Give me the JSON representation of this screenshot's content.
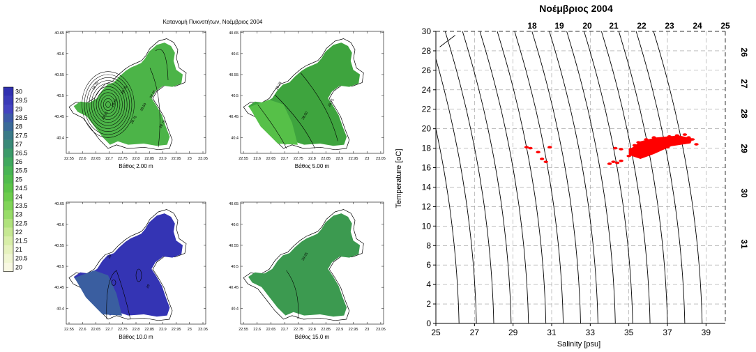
{
  "chart_data": [
    {
      "type": "heatmap",
      "title": "Κατανομή Πυκνοτήτων, Νοέμβριος 2004",
      "colorbar": {
        "ticks": [
          "30",
          "29.5",
          "29",
          "28.5",
          "28",
          "27.5",
          "27",
          "26.5",
          "26",
          "25.5",
          "25",
          "24.5",
          "24",
          "23.5",
          "23",
          "22.5",
          "22",
          "21.5",
          "21",
          "20.5",
          "20"
        ],
        "colors": [
          "#3030b0",
          "#3a3ab8",
          "#4444c0",
          "#3d5aa8",
          "#3a6a98",
          "#3a7a88",
          "#3a8a78",
          "#3c9a6a",
          "#40a85e",
          "#48b454",
          "#50bc4c",
          "#5cc448",
          "#6ccc4c",
          "#80d458",
          "#98dc68",
          "#b0e27c",
          "#c6e892",
          "#d8eea8",
          "#e6f2be",
          "#f0f6d2",
          "#f8f8e2"
        ]
      },
      "x_ticks": [
        "22.55",
        "22.6",
        "22.65",
        "22.7",
        "22.75",
        "22.8",
        "22.85",
        "22.9",
        "22.95",
        "23",
        "23.05"
      ],
      "y_ticks": [
        "40.65",
        "40.6",
        "40.55",
        "40.5",
        "40.45",
        "40.4"
      ],
      "panels": [
        {
          "label": "Βάθος  2.00 m",
          "fill": "#4cb448",
          "contour_labels": [
            "28.75",
            "28.25",
            "28.50",
            "28.75",
            "28.75",
            "28.50",
            "28.25",
            "28.75"
          ]
        },
        {
          "label": "Βάθος  5.00 m",
          "fill": "#3ea43e",
          "inner_fill": "#56c048",
          "contour_labels": [
            "28.25",
            "28.50",
            "28.75"
          ]
        },
        {
          "label": "Βάθος  10.0 m",
          "fill": "#3434b4",
          "inner_fill": "#3a5ea0",
          "contour_labels": [
            "29",
            "29"
          ]
        },
        {
          "label": "Βάθος  15.0 m",
          "fill": "#3c9a50",
          "contour_labels": [
            "29.25"
          ]
        }
      ]
    },
    {
      "type": "scatter",
      "title": "Νοέμβριος 2004",
      "xlabel": "Salinity [psu]",
      "ylabel": "Temperature [oC]",
      "xlim": [
        25,
        40
      ],
      "ylim": [
        0,
        30
      ],
      "x_ticks": [
        "25",
        "27",
        "29",
        "31",
        "33",
        "35",
        "37",
        "39"
      ],
      "y_ticks": [
        "0",
        "2",
        "4",
        "6",
        "8",
        "10",
        "12",
        "14",
        "16",
        "18",
        "20",
        "22",
        "24",
        "26",
        "28",
        "30"
      ],
      "density_top_labels": [
        "18",
        "19",
        "20",
        "21",
        "22",
        "23",
        "24",
        "25"
      ],
      "density_right_labels": [
        "26",
        "27",
        "28",
        "29",
        "30",
        "31"
      ],
      "point_color": "#ff0000",
      "points": [
        [
          29.7,
          18.1
        ],
        [
          29.9,
          18.0
        ],
        [
          30.3,
          17.6
        ],
        [
          30.5,
          16.9
        ],
        [
          30.7,
          16.6
        ],
        [
          30.9,
          18.1
        ],
        [
          34.0,
          16.4
        ],
        [
          34.2,
          16.6
        ],
        [
          34.4,
          16.5
        ],
        [
          34.6,
          16.7
        ],
        [
          35.0,
          17.2
        ],
        [
          35.1,
          17.9
        ],
        [
          34.6,
          17.9
        ],
        [
          34.3,
          18.0
        ],
        [
          35.3,
          18.3
        ],
        [
          35.5,
          18.6
        ],
        [
          35.7,
          18.2
        ],
        [
          35.9,
          18.9
        ],
        [
          36.1,
          18.5
        ],
        [
          36.3,
          19.1
        ],
        [
          36.5,
          18.7
        ],
        [
          36.7,
          19.0
        ],
        [
          36.9,
          18.8
        ],
        [
          37.1,
          19.2
        ],
        [
          37.3,
          18.9
        ],
        [
          37.5,
          19.3
        ],
        [
          37.7,
          19.0
        ],
        [
          37.9,
          19.4
        ],
        [
          38.1,
          19.1
        ],
        [
          38.3,
          18.9
        ],
        [
          38.5,
          18.4
        ],
        [
          35.8,
          17.4
        ],
        [
          36.0,
          17.8
        ],
        [
          36.2,
          18.0
        ],
        [
          35.6,
          17.1
        ],
        [
          36.4,
          17.7
        ],
        [
          36.8,
          18.4
        ],
        [
          37.2,
          18.6
        ],
        [
          37.6,
          18.7
        ],
        [
          36.6,
          18.2
        ],
        [
          35.4,
          17.6
        ],
        [
          37.0,
          18.1
        ]
      ]
    }
  ]
}
